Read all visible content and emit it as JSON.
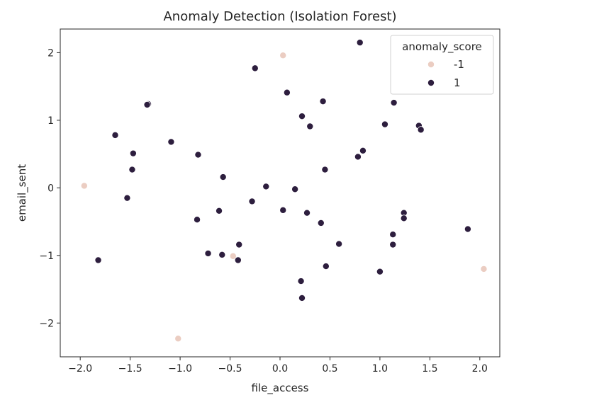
{
  "chart_data": {
    "type": "scatter",
    "title": "Anomaly Detection (Isolation Forest)",
    "xlabel": "file_access",
    "ylabel": "email_sent",
    "xlim": [
      -2.2,
      2.2
    ],
    "ylim": [
      -2.5,
      2.35
    ],
    "xticks": [
      -2.0,
      -1.5,
      -1.0,
      -0.5,
      0.0,
      0.5,
      1.0,
      1.5,
      2.0
    ],
    "xtick_labels": [
      "−2.0",
      "−1.5",
      "−1.0",
      "−0.5",
      "0.0",
      "0.5",
      "1.0",
      "1.5",
      "2.0"
    ],
    "yticks": [
      2,
      1,
      0,
      -1,
      -2
    ],
    "ytick_labels": [
      "2",
      "1",
      "0",
      "−1",
      "−2"
    ],
    "grid": false,
    "legend": {
      "title": "anomaly_score",
      "placement": "top-right",
      "entries": [
        {
          "label": "-1",
          "color": "#ebcdc2"
        },
        {
          "label": "1",
          "color": "#2d1e3e"
        }
      ]
    },
    "series": [
      {
        "name": "-1",
        "color": "#ebcdc2",
        "points": [
          [
            0.03,
            1.96
          ],
          [
            -1.96,
            0.03
          ],
          [
            -0.47,
            -1.01
          ],
          [
            -1.02,
            -2.23
          ],
          [
            2.04,
            -1.2
          ]
        ]
      },
      {
        "name": "1",
        "color": "#2d1e3e",
        "points": [
          [
            0.8,
            2.15
          ],
          [
            -0.25,
            1.77
          ],
          [
            0.07,
            1.41
          ],
          [
            0.43,
            1.28
          ],
          [
            1.14,
            1.26
          ],
          [
            -1.32,
            1.24
          ],
          [
            -1.33,
            1.23
          ],
          [
            0.22,
            1.06
          ],
          [
            0.3,
            0.91
          ],
          [
            1.05,
            0.94
          ],
          [
            1.39,
            0.92
          ],
          [
            1.41,
            0.86
          ],
          [
            -1.65,
            0.78
          ],
          [
            -1.09,
            0.68
          ],
          [
            -1.47,
            0.51
          ],
          [
            -0.82,
            0.49
          ],
          [
            0.83,
            0.55
          ],
          [
            0.78,
            0.46
          ],
          [
            -1.48,
            0.27
          ],
          [
            0.45,
            0.27
          ],
          [
            -0.57,
            0.16
          ],
          [
            -0.14,
            0.02
          ],
          [
            0.15,
            -0.02
          ],
          [
            -1.53,
            -0.15
          ],
          [
            -0.28,
            -0.2
          ],
          [
            -0.61,
            -0.34
          ],
          [
            0.03,
            -0.33
          ],
          [
            0.27,
            -0.37
          ],
          [
            1.24,
            -0.37
          ],
          [
            1.24,
            -0.45
          ],
          [
            -0.83,
            -0.47
          ],
          [
            0.41,
            -0.52
          ],
          [
            1.13,
            -0.69
          ],
          [
            1.88,
            -0.61
          ],
          [
            -0.41,
            -0.84
          ],
          [
            0.59,
            -0.83
          ],
          [
            1.13,
            -0.84
          ],
          [
            -0.72,
            -0.97
          ],
          [
            -0.58,
            -0.99
          ],
          [
            -1.82,
            -1.07
          ],
          [
            -0.42,
            -1.07
          ],
          [
            0.46,
            -1.16
          ],
          [
            1.0,
            -1.24
          ],
          [
            0.21,
            -1.38
          ],
          [
            0.22,
            -1.63
          ]
        ]
      }
    ]
  }
}
